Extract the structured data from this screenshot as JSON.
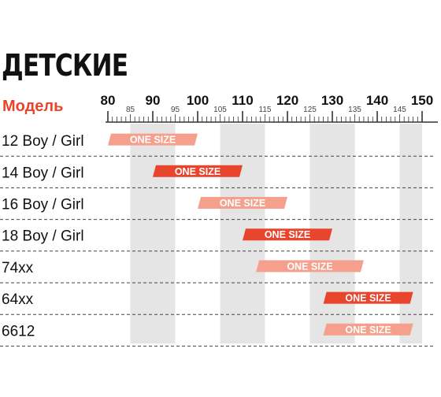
{
  "title": "ДЕТСКИЕ",
  "header": {
    "model_label": "Модель"
  },
  "colors": {
    "accent": "#e8452c",
    "bar_light": "#f4a08c",
    "bar_dark": "#e8452c",
    "band": "#e5e5e5",
    "ruler": "#333333"
  },
  "chart_data": {
    "type": "bar",
    "orientation": "horizontal-range",
    "title": "ДЕТСКИЕ",
    "ylabel": "Модель",
    "xlim": [
      80,
      150
    ],
    "major_ticks": [
      "80",
      "90",
      "100",
      "110",
      "120",
      "130",
      "140",
      "150"
    ],
    "minor_tick_labels": [
      "85",
      "95",
      "105",
      "115",
      "125",
      "135",
      "145"
    ],
    "highlight_bands": [
      [
        85,
        95
      ],
      [
        105,
        115
      ],
      [
        125,
        135
      ],
      [
        145,
        150
      ]
    ],
    "categories": [
      "12 Boy / Girl",
      "14 Boy / Girl",
      "16 Boy / Girl",
      "18 Boy / Girl",
      "74xx",
      "64xx",
      "6612"
    ],
    "series": [
      {
        "values": [
          {
            "start": 80,
            "end": 100,
            "label": "ONE SIZE",
            "shade": "light"
          },
          {
            "start": 90,
            "end": 110,
            "label": "ONE SIZE",
            "shade": "dark"
          },
          {
            "start": 100,
            "end": 120,
            "label": "ONE SIZE",
            "shade": "light"
          },
          {
            "start": 110,
            "end": 130,
            "label": "ONE SIZE",
            "shade": "dark"
          },
          {
            "start": 113,
            "end": 137,
            "label": "ONE SIZE",
            "shade": "light"
          },
          {
            "start": 128,
            "end": 148,
            "label": "ONE SIZE",
            "shade": "dark"
          },
          {
            "start": 128,
            "end": 148,
            "label": "ONE SIZE",
            "shade": "light"
          }
        ]
      }
    ],
    "grid": "dashed-row-separators"
  }
}
